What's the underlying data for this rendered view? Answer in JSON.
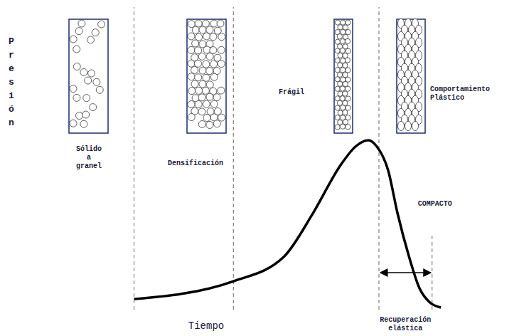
{
  "chart_data": {
    "type": "line",
    "x_label": "Tiempo",
    "y_label": "Presión",
    "x": [
      19,
      40.5,
      51.5,
      57.7,
      63.8,
      67,
      69.7,
      71.5,
      74,
      76,
      78.5,
      80.8,
      83,
      85.4
    ],
    "values": [
      3.5,
      9.4,
      17.6,
      31.8,
      48,
      54,
      56,
      54,
      46,
      32,
      17.6,
      7,
      2.4,
      0.7
    ],
    "color": "#000000",
    "xlim": [
      0,
      100
    ],
    "ylim": [
      0,
      100
    ],
    "xticks": [],
    "yticks": [],
    "tick_labels": false,
    "grid": false,
    "stages": [
      {
        "label": "Sólido a granel",
        "x_start": 0,
        "x_end": 19
      },
      {
        "label": "Densificación",
        "x_start": 19,
        "x_end": 40.5
      },
      {
        "label": "Frágil",
        "x_start": 40.5,
        "x_end": 72
      },
      {
        "label": "Comportamiento Plástico",
        "x_start": 72,
        "x_end": 100
      }
    ],
    "compact": {
      "label": "COMPACTO",
      "x": 83.5,
      "y_top": 25
    },
    "elastic_recovery": {
      "label": "Recuperación elástica",
      "x_start": 72,
      "x_end": 83.5
    }
  }
}
